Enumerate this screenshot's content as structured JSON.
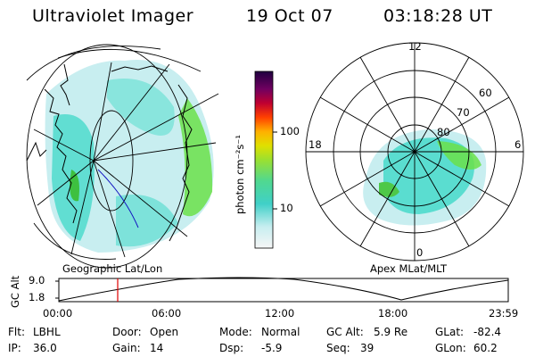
{
  "header": {
    "title": "Ultraviolet Imager",
    "date": "19 Oct 07",
    "time": "03:18:28 UT"
  },
  "colorbar": {
    "unit_label": "photon cm⁻²s⁻¹",
    "ticks": [
      "100",
      "10"
    ]
  },
  "left_map": {
    "caption": "Geographic Lat/Lon"
  },
  "right_map": {
    "caption": "Apex MLat/MLT",
    "mlt_labels": [
      "12",
      "18",
      "6",
      "0"
    ],
    "mlat_labels": [
      "60",
      "70",
      "80"
    ]
  },
  "altitude_plot": {
    "ylabel": "GC Alt",
    "ytick_top": "9.0",
    "ytick_bottom": "1.8",
    "xticks": [
      "00:00",
      "06:00",
      "12:00",
      "18:00",
      "23:59"
    ],
    "marker_time": "03:18:28"
  },
  "info": {
    "filter_label": "Flt:",
    "filter_value": "LBHL",
    "ip_label": "IP:",
    "ip_value": "36.0",
    "door_label": "Door:",
    "door_value": "Open",
    "gain_label": "Gain:",
    "gain_value": "14",
    "mode_label": "Mode:",
    "mode_value": "Normal",
    "dsp_label": "Dsp:",
    "dsp_value": "-5.9",
    "gcalt_label": "GC Alt:",
    "gcalt_value": "5.9 Re",
    "seq_label": "Seq:",
    "seq_value": "39",
    "glat_label": "GLat:",
    "glat_value": "-82.4",
    "glon_label": "GLon:",
    "glon_value": "60.2"
  },
  "colors": {
    "emission_low": "#d8f0f0",
    "emission_mid": "#3fd8c8",
    "emission_high": "#6be04a",
    "marker": "#e00000",
    "track": "#1010c0"
  }
}
